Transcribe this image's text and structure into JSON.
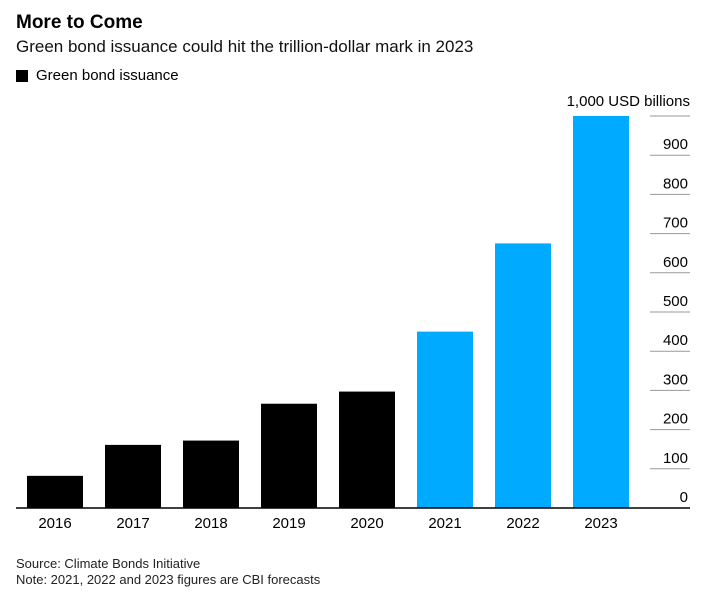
{
  "title": "More to Come",
  "subtitle": "Green bond issuance could hit the trillion-dollar mark in 2023",
  "legend": {
    "label": "Green bond issuance",
    "color": "#000000"
  },
  "colors": {
    "actual": "#000000",
    "forecast": "#00aaff"
  },
  "source": "Source: Climate Bonds Initiative",
  "note": "Note: 2021, 2022 and 2023 figures are CBI forecasts",
  "chart_data": {
    "type": "bar",
    "title": "More to Come",
    "subtitle": "Green bond issuance could hit the trillion-dollar mark in 2023",
    "categories": [
      "2016",
      "2017",
      "2018",
      "2019",
      "2020",
      "2021",
      "2022",
      "2023"
    ],
    "series": [
      {
        "name": "Green bond issuance",
        "values": [
          82,
          161,
          172,
          266,
          297,
          450,
          675,
          1000
        ]
      }
    ],
    "forecast": [
      false,
      false,
      false,
      false,
      false,
      true,
      true,
      true
    ],
    "yticks": [
      0,
      100,
      200,
      300,
      400,
      500,
      600,
      700,
      800,
      900
    ],
    "top_tick_label": "1,000 USD billions",
    "ylim": [
      0,
      1000
    ],
    "y_axis_position": "right",
    "grid": true
  }
}
